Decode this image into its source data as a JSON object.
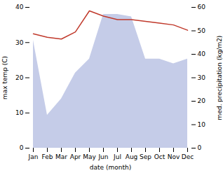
{
  "chart_data": {
    "type": "line",
    "xlabel": "date (month)",
    "ylabel": "max temp (C)",
    "y2label": "med. precipitation (kg/m2)",
    "categories": [
      "Jan",
      "Feb",
      "Mar",
      "Apr",
      "May",
      "Jun",
      "Jul",
      "Aug",
      "Sep",
      "Oct",
      "Nov",
      "Dec"
    ],
    "series": [
      {
        "type": "area",
        "axis": "y2",
        "color": "#c5cce8",
        "values": [
          46,
          14,
          21,
          32,
          38,
          57,
          57,
          56,
          38,
          38,
          36,
          38
        ]
      },
      {
        "type": "line",
        "color": "#c0392b",
        "values": [
          32.5,
          31.5,
          31.0,
          33.0,
          39.0,
          37.5,
          36.5,
          36.5,
          36.0,
          35.5,
          35.0,
          33.5
        ]
      }
    ],
    "ylim": [
      0,
      40
    ],
    "yticks": [
      0,
      10,
      20,
      30,
      40
    ],
    "y2lim": [
      0,
      60
    ],
    "y2ticks": [
      0,
      10,
      20,
      30,
      40,
      50,
      60
    ],
    "grid": false
  }
}
